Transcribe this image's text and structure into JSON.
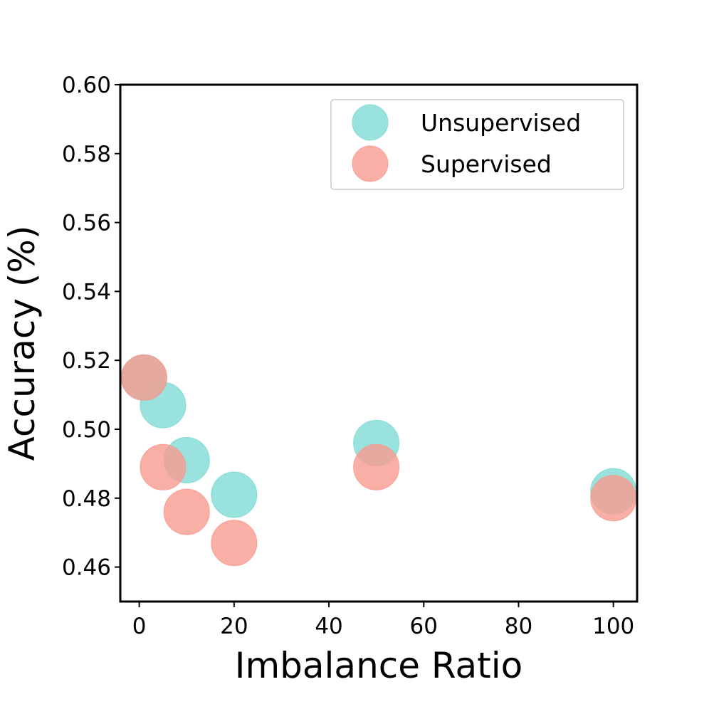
{
  "chart_data": {
    "type": "scatter",
    "title": "",
    "xlabel": "Imbalance Ratio",
    "ylabel": "Accuracy (%)",
    "xlim": [
      -4,
      105
    ],
    "ylim": [
      0.45,
      0.6
    ],
    "xticks": [
      0,
      20,
      40,
      60,
      80,
      100
    ],
    "yticks": [
      0.46,
      0.48,
      0.5,
      0.52,
      0.54,
      0.56,
      0.58,
      0.6
    ],
    "grid": false,
    "legend_position": "top-right",
    "series": [
      {
        "name": "Unsupervised",
        "color": "#7fdbd4",
        "x": [
          1,
          5,
          10,
          20,
          50,
          100
        ],
        "y": [
          0.515,
          0.507,
          0.491,
          0.481,
          0.496,
          0.482
        ]
      },
      {
        "name": "Supervised",
        "color": "#f79b90",
        "x": [
          1,
          5,
          10,
          20,
          50,
          100
        ],
        "y": [
          0.515,
          0.489,
          0.476,
          0.467,
          0.489,
          0.48
        ]
      }
    ]
  }
}
